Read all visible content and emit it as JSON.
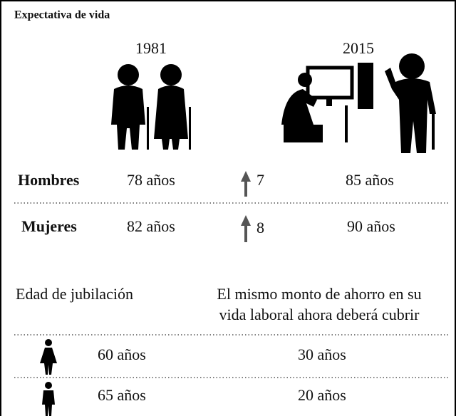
{
  "title": "Expectativa de vida",
  "years": [
    "1981",
    "2015"
  ],
  "life_table": {
    "rows": [
      {
        "label": "Hombres",
        "before": "78 años",
        "increase": "7",
        "after": "85 años"
      },
      {
        "label": "Mujeres",
        "before": "82 años",
        "increase": "8",
        "after": "90 años"
      }
    ]
  },
  "retirement": {
    "headers": {
      "age": "Edad de jubilación",
      "coverage": [
        "El mismo monto de ahorro en su",
        "vida laboral ahora deberá cubrir"
      ]
    },
    "rows": [
      {
        "age": "60 años",
        "coverage": "30 años"
      },
      {
        "age": "65 años",
        "coverage": "20 años"
      }
    ]
  }
}
